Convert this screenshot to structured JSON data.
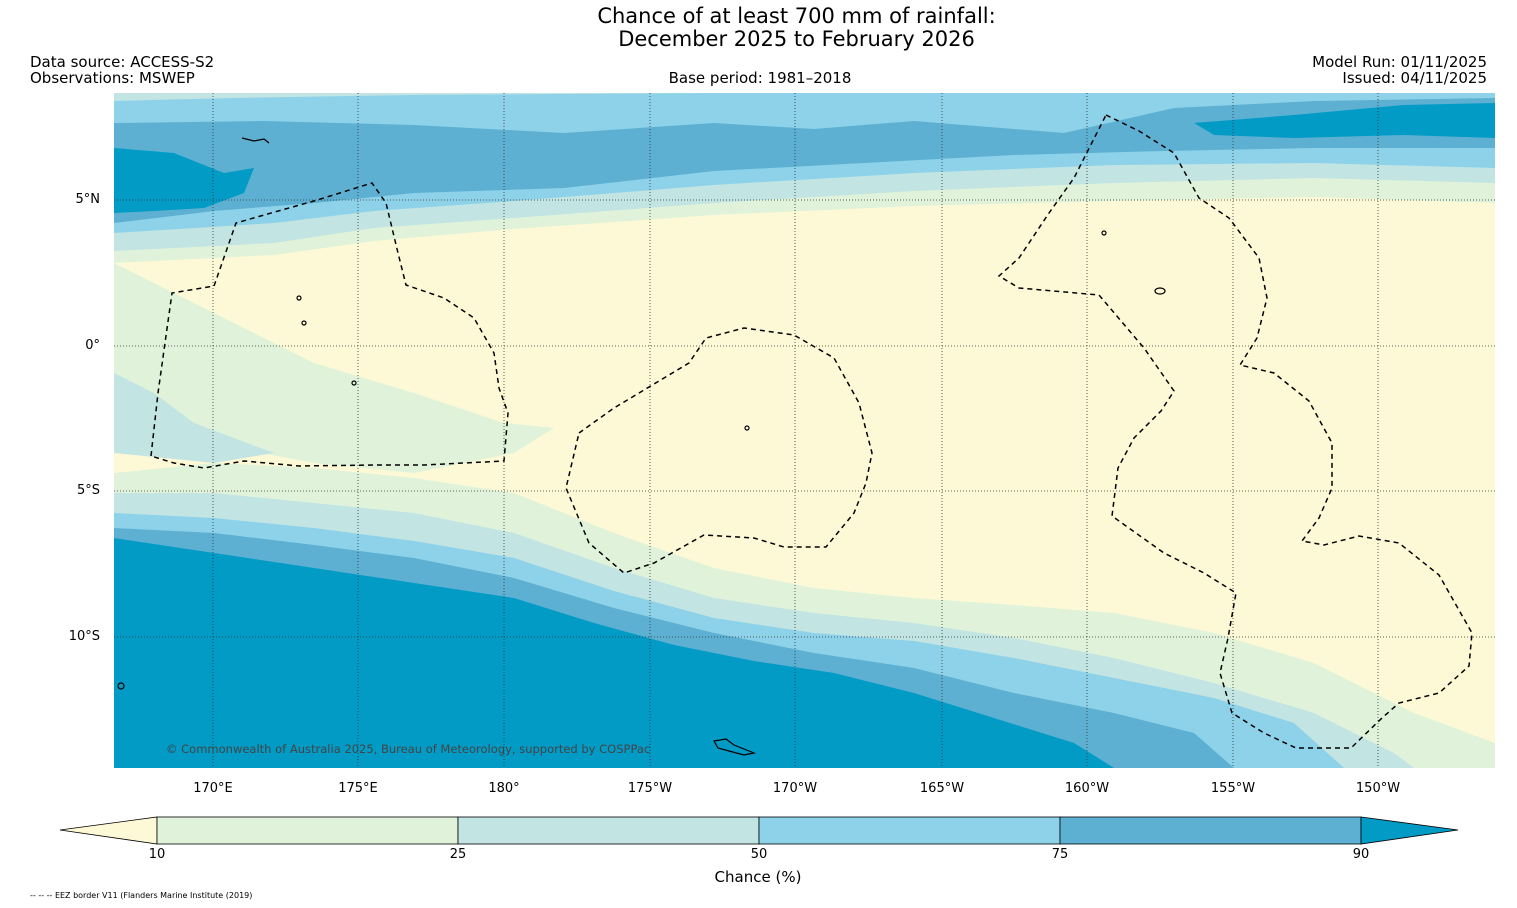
{
  "title": {
    "line1": "Chance of at least 700 mm of rainfall:",
    "line2": "December 2025 to February 2026"
  },
  "header": {
    "data_source": "Data source: ACCESS-S2",
    "observations": "Observations: MSWEP",
    "base_period": "Base period: 1981–2018",
    "model_run": "Model Run: 01/11/2025",
    "issued": "Issued: 04/11/2025"
  },
  "map": {
    "latitude_labels": [
      "5°N",
      "0°",
      "5°S",
      "10°S"
    ],
    "longitude_labels": [
      "170°E",
      "175°E",
      "180°",
      "175°W",
      "170°W",
      "165°W",
      "160°W",
      "155°W",
      "150°W"
    ],
    "copyright": "© Commonwealth of Australia 2025, Bureau of Meteorology, supported by COSPPac"
  },
  "legend": {
    "ticks": [
      "10",
      "25",
      "50",
      "75",
      "90"
    ],
    "label": "Chance (%)",
    "colors": [
      "#fdf9d6",
      "#e0f3da",
      "#c2e4e3",
      "#8dd2e9",
      "#5db0d2",
      "#019bc6"
    ]
  },
  "footnote": "-- -- -- EEZ border V11 (Flanders Marine Institute (2019)"
}
